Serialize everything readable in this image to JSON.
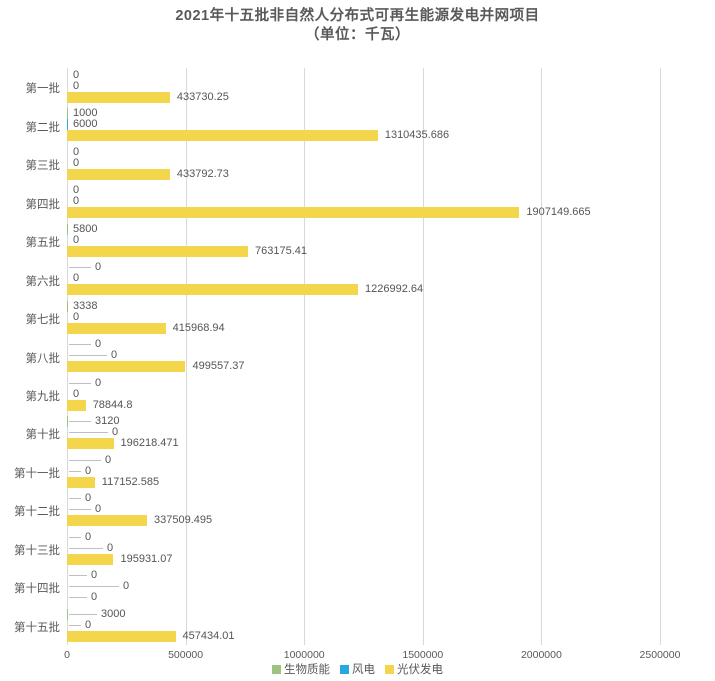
{
  "title": {
    "line1": "2021年十五批非自然人分布式可再生能源发电并网项目",
    "line2": "（单位：千瓦）"
  },
  "chart_data": {
    "type": "bar",
    "orientation": "horizontal",
    "unit": "千瓦",
    "grid": true,
    "legend_position": "bottom",
    "xlim": [
      0,
      2500000
    ],
    "x_ticks": [
      0,
      500000,
      1000000,
      1500000,
      2000000,
      2500000
    ],
    "categories": [
      "第一批",
      "第二批",
      "第三批",
      "第四批",
      "第五批",
      "第六批",
      "第七批",
      "第八批",
      "第九批",
      "第十批",
      "第十一批",
      "第十二批",
      "第十三批",
      "第十四批",
      "第十五批"
    ],
    "series": [
      {
        "name": "生物质能",
        "color": "#9dc383",
        "values": [
          0,
          1000,
          0,
          0,
          5800,
          0,
          3338,
          0,
          0,
          3120,
          0,
          0,
          0,
          0,
          3000
        ]
      },
      {
        "name": "风电",
        "color": "#29a8e0",
        "values": [
          0,
          6000,
          0,
          0,
          0,
          0,
          0,
          0,
          0,
          0,
          0,
          0,
          0,
          0,
          0
        ]
      },
      {
        "name": "光伏发电",
        "color": "#f3d64b",
        "values": [
          433730.25,
          1310435.686,
          433792.73,
          1907149.665,
          763175.41,
          1226992.64,
          415968.94,
          499557.37,
          78844.8,
          196218.471,
          117152.585,
          337509.495,
          195931.07,
          0,
          457434.01
        ]
      }
    ]
  },
  "colors": {
    "gridline": "#d9d9d9",
    "text": "#595959",
    "leader_line": "#bfbfbf",
    "background": "#ffffff"
  }
}
